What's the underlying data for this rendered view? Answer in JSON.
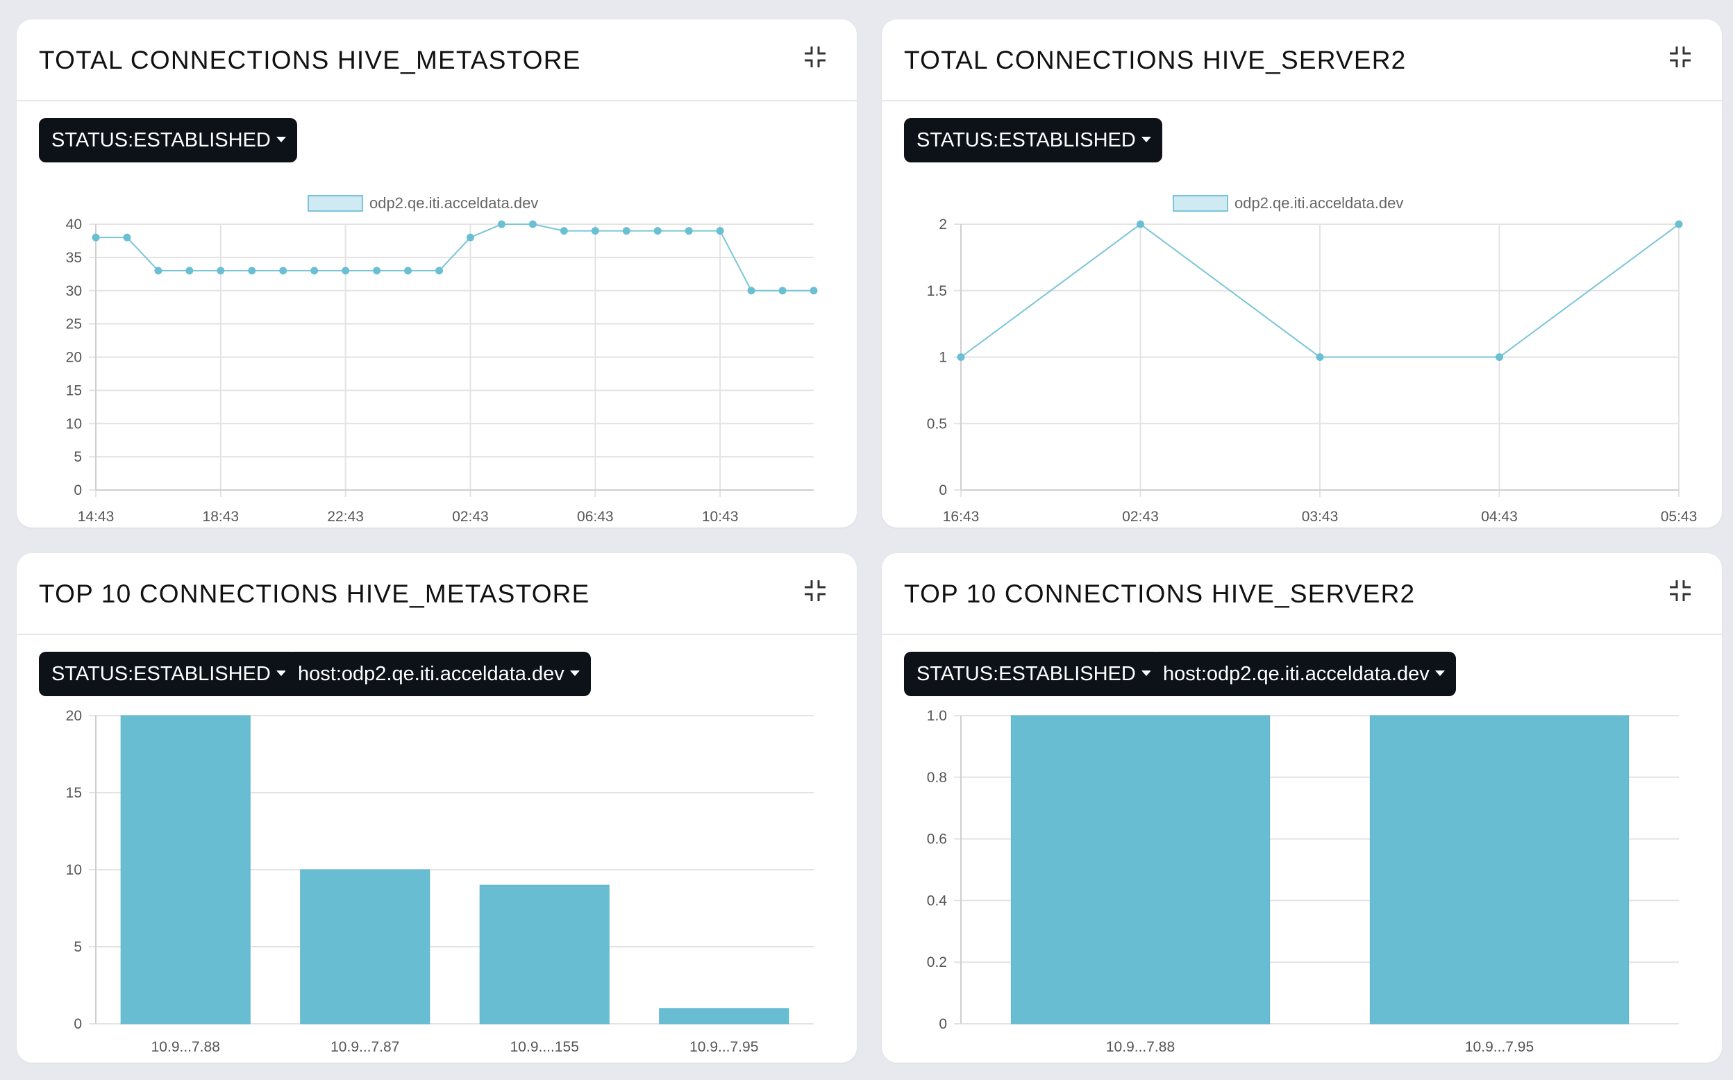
{
  "colors": {
    "background": "#e8e9ee",
    "card": "#ffffff",
    "chip_bg": "#0d1219",
    "series_line": "#7ac5d8",
    "series_point": "#6bbfd3",
    "bar_fill": "#68bdd2",
    "grid": "#e3e3e3",
    "axis_text": "#555555"
  },
  "panels": [
    {
      "title": "TOTAL CONNECTIONS HIVE_METASTORE",
      "collapse_icon": "collapse-arrows-icon",
      "filters": [
        {
          "label": "STATUS:ESTABLISHED"
        }
      ]
    },
    {
      "title": "TOTAL CONNECTIONS HIVE_SERVER2",
      "collapse_icon": "collapse-arrows-icon",
      "filters": [
        {
          "label": "STATUS:ESTABLISHED"
        }
      ]
    },
    {
      "title": "TOP 10 CONNECTIONS HIVE_METASTORE",
      "collapse_icon": "collapse-arrows-icon",
      "filters": [
        {
          "label": "STATUS:ESTABLISHED"
        },
        {
          "label": "host:odp2.qe.iti.acceldata.dev"
        }
      ]
    },
    {
      "title": "TOP 10 CONNECTIONS HIVE_SERVER2",
      "collapse_icon": "collapse-arrows-icon",
      "filters": [
        {
          "label": "STATUS:ESTABLISHED"
        },
        {
          "label": "host:odp2.qe.iti.acceldata.dev"
        }
      ]
    }
  ],
  "chart_data": [
    {
      "type": "line",
      "legend": [
        "odp2.qe.iti.acceldata.dev"
      ],
      "legend_position": "top",
      "x_ticks": [
        "14:43",
        "18:43",
        "22:43",
        "02:43",
        "06:43",
        "10:43"
      ],
      "y_ticks": [
        0,
        5,
        10,
        15,
        20,
        25,
        30,
        35,
        40
      ],
      "ylim": [
        0,
        40
      ],
      "grid": true,
      "series": [
        {
          "name": "odp2.qe.iti.acceldata.dev",
          "values": [
            38,
            38,
            33,
            33,
            33,
            33,
            33,
            33,
            33,
            33,
            33,
            33,
            38,
            40,
            40,
            39,
            39,
            39,
            39,
            39,
            39,
            30,
            30,
            30
          ]
        }
      ]
    },
    {
      "type": "line",
      "legend": [
        "odp2.qe.iti.acceldata.dev"
      ],
      "legend_position": "top",
      "x_ticks": [
        "16:43",
        "02:43",
        "03:43",
        "04:43",
        "05:43"
      ],
      "y_ticks": [
        "0",
        "0.5",
        "1",
        "1.5",
        "2"
      ],
      "ylim": [
        0,
        2
      ],
      "grid": true,
      "series": [
        {
          "name": "odp2.qe.iti.acceldata.dev",
          "values": [
            1,
            2,
            1,
            1,
            2
          ]
        }
      ]
    },
    {
      "type": "bar",
      "categories": [
        "10.9...7.88",
        "10.9...7.87",
        "10.9....155",
        "10.9...7.95"
      ],
      "values": [
        20,
        10,
        9,
        1
      ],
      "y_ticks": [
        "0",
        "5",
        "10",
        "15",
        "20"
      ],
      "ylim": [
        0,
        20
      ],
      "grid": true
    },
    {
      "type": "bar",
      "categories": [
        "10.9...7.88",
        "10.9...7.95"
      ],
      "values": [
        1.0,
        1.0
      ],
      "y_ticks": [
        "0",
        "0.2",
        "0.4",
        "0.6",
        "0.8",
        "1.0"
      ],
      "ylim": [
        0,
        1
      ],
      "grid": true
    }
  ]
}
